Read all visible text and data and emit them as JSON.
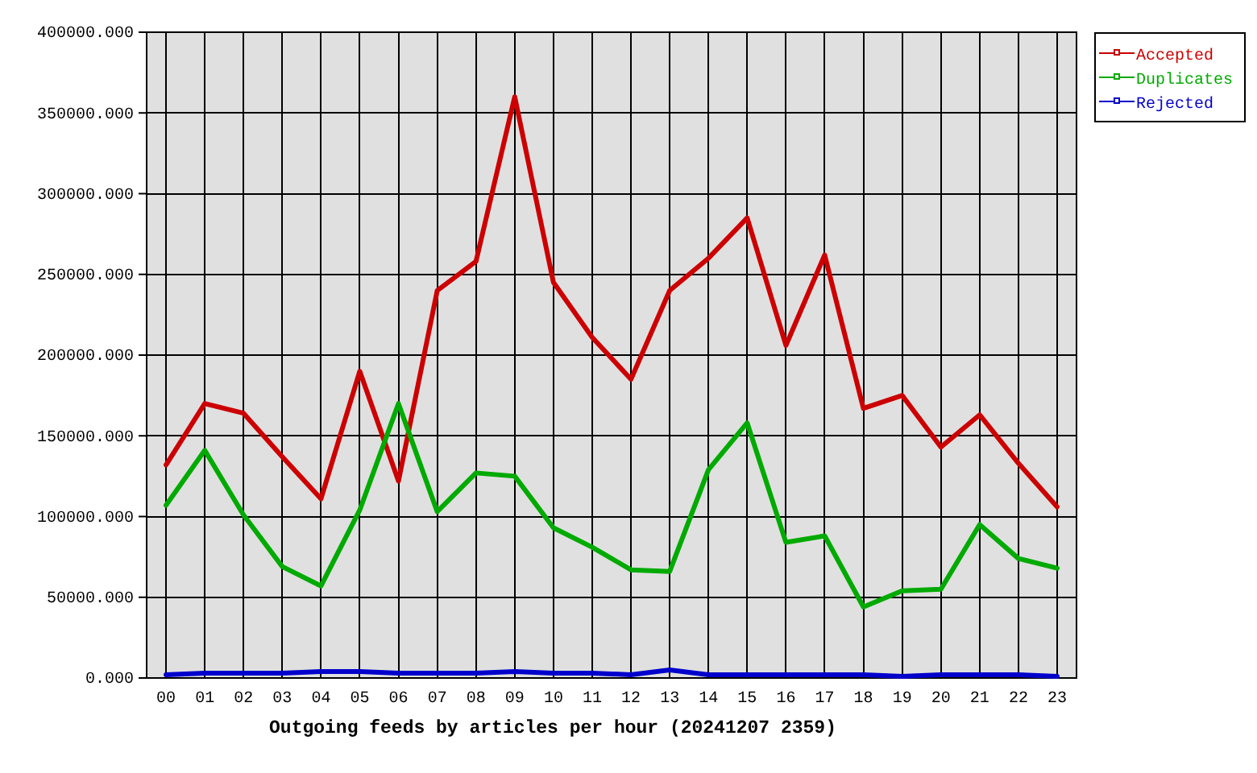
{
  "chart_data": {
    "type": "line",
    "xlabel": "Outgoing feeds by articles per hour (20241207 2359)",
    "categories": [
      "00",
      "01",
      "02",
      "03",
      "04",
      "05",
      "06",
      "07",
      "08",
      "09",
      "10",
      "11",
      "12",
      "13",
      "14",
      "15",
      "16",
      "17",
      "18",
      "19",
      "20",
      "21",
      "22",
      "23"
    ],
    "series": [
      {
        "name": "Accepted",
        "color": "#cc0000",
        "values": [
          132000,
          170000,
          164000,
          137000,
          111000,
          190000,
          122000,
          240000,
          258000,
          360000,
          245000,
          211000,
          185000,
          240000,
          260000,
          285000,
          206000,
          262000,
          167000,
          175000,
          143000,
          163000,
          133000,
          106000
        ]
      },
      {
        "name": "Duplicates",
        "color": "#00aa00",
        "values": [
          107000,
          141000,
          101000,
          69000,
          57000,
          104000,
          170000,
          103000,
          127000,
          125000,
          93000,
          81000,
          67000,
          66000,
          129000,
          158000,
          84000,
          88000,
          44000,
          54000,
          55000,
          95000,
          74000,
          68000
        ]
      },
      {
        "name": "Rejected",
        "color": "#0000cc",
        "values": [
          2000,
          3000,
          3000,
          3000,
          4000,
          4000,
          3000,
          3000,
          3000,
          4000,
          3000,
          3000,
          2000,
          5000,
          2000,
          2000,
          2000,
          2000,
          2000,
          1000,
          2000,
          2000,
          2000,
          1000
        ]
      }
    ],
    "ylim": [
      0,
      400000
    ],
    "yticks": [
      {
        "value": 0,
        "label": "0.000"
      },
      {
        "value": 50000,
        "label": "50000.000"
      },
      {
        "value": 100000,
        "label": "100000.000"
      },
      {
        "value": 150000,
        "label": "150000.000"
      },
      {
        "value": 200000,
        "label": "200000.000"
      },
      {
        "value": 250000,
        "label": "250000.000"
      },
      {
        "value": 300000,
        "label": "300000.000"
      },
      {
        "value": 350000,
        "label": "350000.000"
      },
      {
        "value": 400000,
        "label": "400000.000"
      }
    ],
    "grid": true,
    "legend": "top right",
    "marker": "none",
    "line_style": "solid"
  }
}
